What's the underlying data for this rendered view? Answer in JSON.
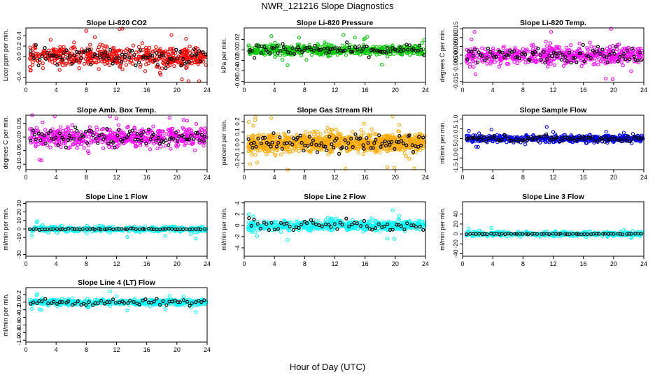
{
  "figure": {
    "title": "NWR_121216  Slope Diagnostics",
    "xlabel": "Hour of Day (UTC)"
  },
  "chart_data": [
    {
      "type": "scatter",
      "title": "Slope Li-820 CO2",
      "ylabel": "Licor ppm per min.",
      "color": "#ff0000",
      "xlim": [
        0,
        24
      ],
      "xticks": [
        0,
        4,
        8,
        12,
        16,
        20,
        24
      ],
      "ylim": [
        -0.5,
        0.55
      ],
      "yticks": [
        "-0.4",
        "0.0",
        "0.2",
        "0.4"
      ],
      "ytick_values": [
        -0.4,
        0.0,
        0.2,
        0.4
      ],
      "spread": 0.17,
      "n": 520
    },
    {
      "type": "scatter",
      "title": "Slope Li-820 Pressure",
      "ylabel": "kPa per min.",
      "color": "#00cc00",
      "xlim": [
        0,
        24
      ],
      "xticks": [
        0,
        4,
        8,
        12,
        16,
        20,
        24
      ],
      "ylim": [
        -0.062,
        0.042
      ],
      "yticks": [
        "-0.06",
        "-0.04",
        "-0.02",
        "0.00",
        "0.02"
      ],
      "ytick_values": [
        -0.06,
        -0.04,
        -0.02,
        0.0,
        0.02
      ],
      "spread": 0.009,
      "n": 520
    },
    {
      "type": "scatter",
      "title": "Slope Li-820 Temp.",
      "ylabel": "degrees C per min.",
      "color": "#ff00ff",
      "xlim": [
        0,
        24
      ],
      "xticks": [
        0,
        4,
        8,
        12,
        16,
        20,
        24
      ],
      "ylim": [
        -0.0155,
        0.0155
      ],
      "yticks": [
        "-0.015",
        "-0.005",
        "0.000",
        "0.005",
        "0.010",
        "0.015"
      ],
      "ytick_values": [
        -0.015,
        -0.005,
        0.0,
        0.005,
        0.01,
        0.015
      ],
      "spread": 0.0045,
      "n": 520
    },
    {
      "type": "scatter",
      "title": "Slope Amb. Box Temp.",
      "ylabel": "degrees C per min.",
      "color": "#ff00ff",
      "xlim": [
        0,
        24
      ],
      "xticks": [
        0,
        4,
        8,
        12,
        16,
        20,
        24
      ],
      "ylim": [
        -0.12,
        0.08
      ],
      "yticks": [
        "-0.10",
        "-0.05",
        "0.00",
        "0.05"
      ],
      "ytick_values": [
        -0.1,
        -0.05,
        0.0,
        0.05
      ],
      "spread": 0.03,
      "n": 540
    },
    {
      "type": "scatter",
      "title": "Slope Gas Stream RH",
      "ylabel": "percent per min.",
      "color": "#ffaa00",
      "xlim": [
        0,
        24
      ],
      "xticks": [
        0,
        4,
        8,
        12,
        16,
        20,
        24
      ],
      "ylim": [
        -0.26,
        0.26
      ],
      "yticks": [
        "-0.2",
        "-0.1",
        "0.0",
        "0.1",
        "0.2"
      ],
      "ytick_values": [
        -0.2,
        -0.1,
        0.0,
        0.1,
        0.2
      ],
      "spread": 0.08,
      "n": 900
    },
    {
      "type": "scatter",
      "title": "Slope Sample Flow",
      "ylabel": "ml/min per min.",
      "color": "#0000ff",
      "xlim": [
        0,
        24
      ],
      "xticks": [
        0,
        4,
        8,
        12,
        16,
        20,
        24
      ],
      "ylim": [
        -1.6,
        1.2
      ],
      "yticks": [
        "-1.5",
        "-1.0",
        "-0.5",
        "0.0",
        "0.5",
        "1.0"
      ],
      "ytick_values": [
        -1.5,
        -1.0,
        -0.5,
        0.0,
        0.5,
        1.0
      ],
      "spread": 0.15,
      "n": 520
    },
    {
      "type": "scatter",
      "title": "Slope Line 1 Flow",
      "ylabel": "ml/min per min.",
      "color": "#00ffff",
      "xlim": [
        0,
        24
      ],
      "xticks": [
        0,
        4,
        8,
        12,
        16,
        20,
        24
      ],
      "ylim": [
        -32,
        32
      ],
      "yticks": [
        "-30",
        "-10",
        "0",
        "10",
        "20",
        "30"
      ],
      "ytick_values": [
        -30,
        -10,
        0,
        10,
        20,
        30
      ],
      "spread": 3,
      "n": 380
    },
    {
      "type": "scatter",
      "title": "Slope Line 2 Flow",
      "ylabel": "ml/min per min.",
      "color": "#00ffff",
      "xlim": [
        0,
        24
      ],
      "xticks": [
        0,
        4,
        8,
        12,
        16,
        20,
        24
      ],
      "ylim": [
        -5.5,
        4.2
      ],
      "yticks": [
        "-4",
        "-2",
        "0",
        "2",
        "4"
      ],
      "ytick_values": [
        -4,
        -2,
        0,
        2,
        4
      ],
      "spread": 0.8,
      "n": 560
    },
    {
      "type": "scatter",
      "title": "Slope Line 3 Flow",
      "ylabel": "ml/min per min.",
      "color": "#00ffff",
      "xlim": [
        0,
        24
      ],
      "xticks": [
        0,
        4,
        8,
        12,
        16,
        20,
        24
      ],
      "ylim": [
        -45,
        65
      ],
      "yticks": [
        "-40",
        "-20",
        "0",
        "20",
        "40"
      ],
      "ytick_values": [
        -40,
        -20,
        0,
        20,
        40
      ],
      "spread": 4,
      "n": 380
    },
    {
      "type": "scatter",
      "title": "Slope Line 4 (LT) Flow",
      "ylabel": "ml/min per min.",
      "color": "#00ffff",
      "xlim": [
        0,
        24
      ],
      "xticks": [
        0,
        4,
        8,
        12,
        16,
        20,
        24
      ],
      "ylim": [
        -1.05,
        0.38
      ],
      "yticks": [
        "-1.0",
        "-0.8",
        "-0.6",
        "-0.4",
        "-0.2",
        "0.0",
        "0.2"
      ],
      "ytick_values": [
        -1.0,
        -0.8,
        -0.6,
        -0.4,
        -0.2,
        0.0,
        0.2
      ],
      "spread": 0.07,
      "n": 520
    }
  ]
}
